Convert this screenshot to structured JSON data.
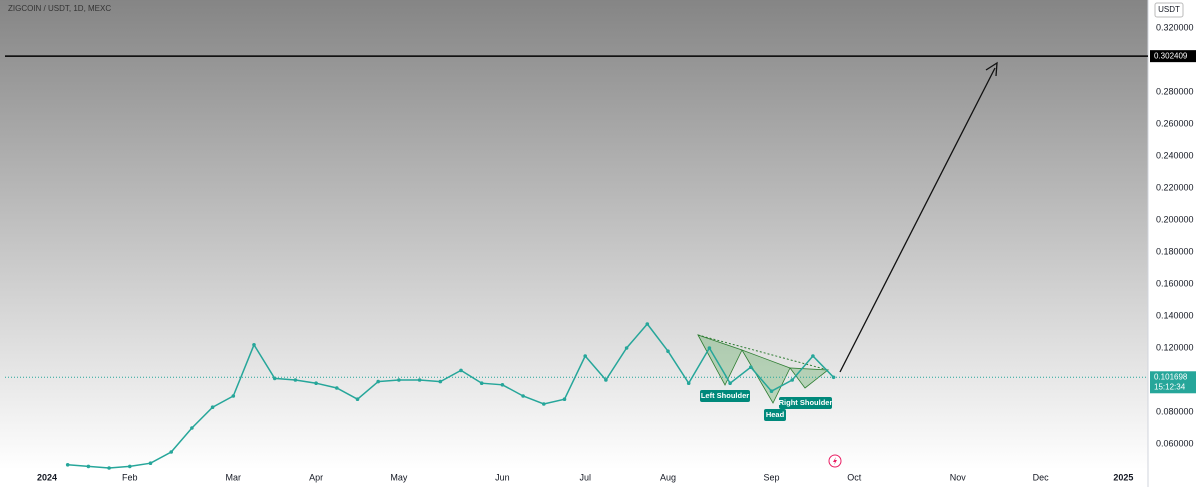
{
  "chart_data": {
    "type": "line",
    "title": "ZIGCOIN / USDT, 1D, MEXC",
    "currency_button": "USDT",
    "categories": [
      "2024",
      null,
      null,
      null,
      "Feb",
      null,
      null,
      null,
      null,
      "Mar",
      null,
      null,
      null,
      "Apr",
      null,
      null,
      null,
      "May",
      null,
      null,
      null,
      null,
      "Jun",
      null,
      null,
      null,
      "Jul",
      null,
      null,
      null,
      "Aug",
      null,
      null,
      null,
      null,
      "Sep",
      null,
      null,
      null,
      "Oct",
      null,
      null,
      null,
      null,
      "Nov",
      null,
      null,
      null,
      "Dec",
      null,
      null,
      null,
      "2025",
      null
    ],
    "values": [
      null,
      0.047,
      0.046,
      0.045,
      0.046,
      0.048,
      0.055,
      0.07,
      0.083,
      0.09,
      0.122,
      0.101,
      0.1,
      0.098,
      0.095,
      0.088,
      0.099,
      0.1,
      0.1,
      0.099,
      0.106,
      0.098,
      0.097,
      0.09,
      0.085,
      0.088,
      0.115,
      0.1,
      0.12,
      0.135,
      0.118,
      0.098,
      0.12,
      0.098,
      0.108,
      0.093,
      0.1,
      0.115,
      0.101698,
      null,
      null,
      null,
      null,
      null,
      null,
      null,
      null,
      null,
      null,
      null,
      null,
      null,
      null,
      null
    ],
    "color": "#26a69a",
    "ylim": [
      0.035,
      0.335
    ],
    "yticks": [
      {
        "value": 0.06,
        "label": "0.060000"
      },
      {
        "value": 0.08,
        "label": "0.080000"
      },
      {
        "value": 0.12,
        "label": "0.120000"
      },
      {
        "value": 0.14,
        "label": "0.140000"
      },
      {
        "value": 0.16,
        "label": "0.160000"
      },
      {
        "value": 0.18,
        "label": "0.180000"
      },
      {
        "value": 0.2,
        "label": "0.200000"
      },
      {
        "value": 0.22,
        "label": "0.220000"
      },
      {
        "value": 0.24,
        "label": "0.240000"
      },
      {
        "value": 0.26,
        "label": "0.260000"
      },
      {
        "value": 0.28,
        "label": "0.280000"
      },
      {
        "value": 0.32,
        "label": "0.320000"
      }
    ],
    "grid": false,
    "target_line": 0.302409,
    "last_price": 0.101698,
    "countdown": "15:12:34",
    "annotations": [
      "Left Shoulder",
      "Head",
      "Right Shoulder"
    ]
  }
}
